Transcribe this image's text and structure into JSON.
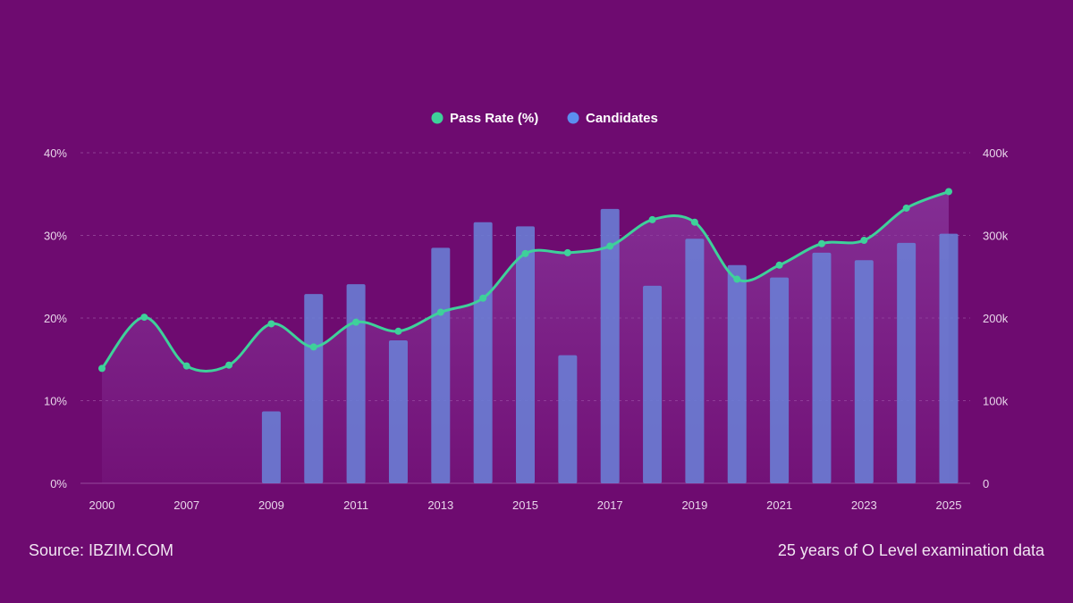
{
  "footer": {
    "source": "Source: IBZIM.COM",
    "caption": "25 years of O Level examination data"
  },
  "colors": {
    "background": "#6e0b70",
    "line": "#3ed19a",
    "bar": "#6a7fd6",
    "area": "#8b3aa0"
  },
  "chart_data": {
    "type": "bar+line",
    "legend_position": "top-center",
    "grid": true,
    "x": [
      "2000",
      "2006",
      "2007",
      "2008",
      "2009",
      "2010",
      "2011",
      "2012",
      "2013",
      "2014",
      "2015",
      "2016",
      "2017",
      "2018",
      "2019",
      "2020",
      "2021",
      "2022",
      "2023",
      "2024",
      "2025"
    ],
    "x_tick_labels": [
      "2000",
      "2007",
      "2009",
      "2011",
      "2013",
      "2015",
      "2017",
      "2019",
      "2021",
      "2023",
      "2025"
    ],
    "series": [
      {
        "name": "Pass Rate (%)",
        "kind": "line",
        "axis": "left",
        "values": [
          13.9,
          20.1,
          14.2,
          14.3,
          19.3,
          16.5,
          19.5,
          18.4,
          20.7,
          22.4,
          27.8,
          27.9,
          28.7,
          31.9,
          31.6,
          24.7,
          26.4,
          29.0,
          29.4,
          33.3,
          35.3
        ]
      },
      {
        "name": "Candidates",
        "kind": "bar",
        "axis": "right",
        "values": [
          null,
          null,
          null,
          null,
          87000,
          229000,
          241000,
          173000,
          285000,
          316000,
          311000,
          155000,
          332000,
          239000,
          296000,
          264000,
          249000,
          279000,
          270000,
          291000,
          302000
        ]
      }
    ],
    "y_left": {
      "min": 0,
      "max": 40,
      "ticks": [
        "0%",
        "10%",
        "20%",
        "30%",
        "40%"
      ]
    },
    "y_right": {
      "min": 0,
      "max": 400000,
      "ticks": [
        "0",
        "100k",
        "200k",
        "300k",
        "400k"
      ]
    }
  }
}
